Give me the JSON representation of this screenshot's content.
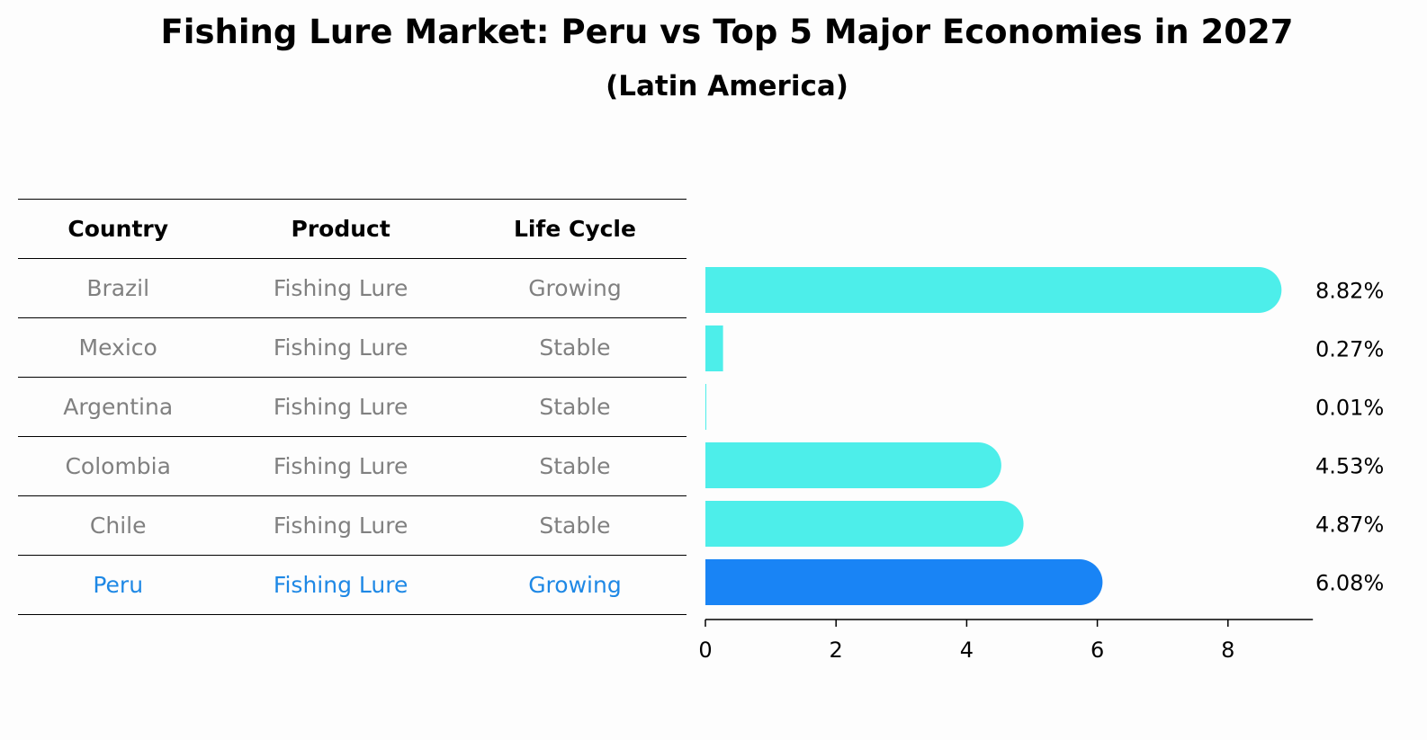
{
  "title": "Fishing Lure Market: Peru vs Top 5 Major Economies in 2027",
  "subtitle": "(Latin America)",
  "table": {
    "headers": [
      "Country",
      "Product",
      "Life Cycle"
    ],
    "rows": [
      {
        "country": "Brazil",
        "product": "Fishing Lure",
        "life_cycle": "Growing"
      },
      {
        "country": "Mexico",
        "product": "Fishing Lure",
        "life_cycle": "Stable"
      },
      {
        "country": "Argentina",
        "product": "Fishing Lure",
        "life_cycle": "Stable"
      },
      {
        "country": "Colombia",
        "product": "Fishing Lure",
        "life_cycle": "Stable"
      },
      {
        "country": "Chile",
        "product": "Fishing Lure",
        "life_cycle": "Stable"
      },
      {
        "country": "Peru",
        "product": "Fishing Lure",
        "life_cycle": "Growing"
      }
    ],
    "highlight_row": 5
  },
  "chart_data": {
    "type": "bar",
    "orientation": "horizontal",
    "categories": [
      "Brazil",
      "Mexico",
      "Argentina",
      "Colombia",
      "Chile",
      "Peru"
    ],
    "values": [
      8.82,
      0.27,
      0.01,
      4.53,
      4.87,
      6.08
    ],
    "value_labels": [
      "8.82%",
      "0.27%",
      "0.01%",
      "4.53%",
      "4.87%",
      "6.08%"
    ],
    "xticks": [
      0,
      2,
      4,
      6,
      8
    ],
    "xlim": [
      0,
      9.3
    ],
    "grid": false,
    "colors": {
      "default": "#4deeea",
      "highlight": "#1984f5",
      "muted_text": "#808080",
      "highlight_text": "#1e88e5"
    },
    "highlight_index": 5
  }
}
